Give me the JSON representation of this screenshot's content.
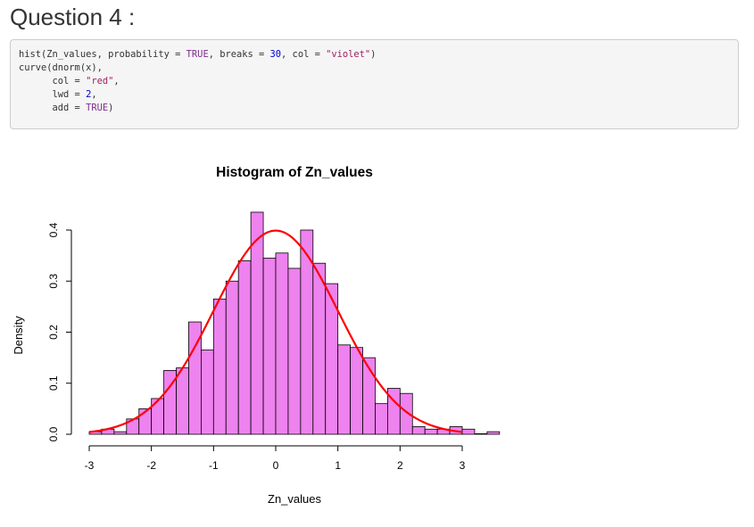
{
  "section_heading": "Question 4 :",
  "code": {
    "lines": [
      [
        {
          "t": "hist(Zn_values, probability = ",
          "c": "fun"
        },
        {
          "t": "TRUE",
          "c": "kw"
        },
        {
          "t": ", breaks = ",
          "c": "fun"
        },
        {
          "t": "30",
          "c": "num"
        },
        {
          "t": ", col = ",
          "c": "fun"
        },
        {
          "t": "\"violet\"",
          "c": "str"
        },
        {
          "t": ")",
          "c": "fun"
        }
      ],
      [
        {
          "t": "curve(dnorm(x),",
          "c": "fun"
        }
      ],
      [
        {
          "t": "      col = ",
          "c": "fun"
        },
        {
          "t": "\"red\"",
          "c": "str"
        },
        {
          "t": ",",
          "c": "fun"
        }
      ],
      [
        {
          "t": "      lwd = ",
          "c": "fun"
        },
        {
          "t": "2",
          "c": "num"
        },
        {
          "t": ",",
          "c": "fun"
        }
      ],
      [
        {
          "t": "      add = ",
          "c": "fun"
        },
        {
          "t": "TRUE",
          "c": "kw"
        },
        {
          "t": ")",
          "c": "fun"
        }
      ]
    ]
  },
  "chart_data": {
    "type": "bar",
    "title": "Histogram of Zn_values",
    "xlabel": "Zn_values",
    "ylabel": "Density",
    "xlim": [
      -3.2,
      3.7
    ],
    "ylim": [
      0,
      0.44
    ],
    "x_ticks": [
      "-3",
      "-2",
      "-1",
      "0",
      "1",
      "2",
      "3"
    ],
    "y_ticks": [
      "0.0",
      "0.1",
      "0.2",
      "0.3",
      "0.4"
    ],
    "grid": false,
    "bar_fill": "#ee82ee",
    "bar_stroke": "#000000",
    "bins": [
      {
        "x0": -3.0,
        "x1": -2.8,
        "density": 0.005
      },
      {
        "x0": -2.8,
        "x1": -2.6,
        "density": 0.01
      },
      {
        "x0": -2.6,
        "x1": -2.4,
        "density": 0.005
      },
      {
        "x0": -2.4,
        "x1": -2.2,
        "density": 0.03
      },
      {
        "x0": -2.2,
        "x1": -2.0,
        "density": 0.05
      },
      {
        "x0": -2.0,
        "x1": -1.8,
        "density": 0.07
      },
      {
        "x0": -1.8,
        "x1": -1.6,
        "density": 0.125
      },
      {
        "x0": -1.6,
        "x1": -1.4,
        "density": 0.13
      },
      {
        "x0": -1.4,
        "x1": -1.2,
        "density": 0.22
      },
      {
        "x0": -1.2,
        "x1": -1.0,
        "density": 0.165
      },
      {
        "x0": -1.0,
        "x1": -0.8,
        "density": 0.265
      },
      {
        "x0": -0.8,
        "x1": -0.6,
        "density": 0.3
      },
      {
        "x0": -0.6,
        "x1": -0.4,
        "density": 0.34
      },
      {
        "x0": -0.4,
        "x1": -0.2,
        "density": 0.435
      },
      {
        "x0": -0.2,
        "x1": 0.0,
        "density": 0.345
      },
      {
        "x0": 0.0,
        "x1": 0.2,
        "density": 0.355
      },
      {
        "x0": 0.2,
        "x1": 0.4,
        "density": 0.325
      },
      {
        "x0": 0.4,
        "x1": 0.6,
        "density": 0.4
      },
      {
        "x0": 0.6,
        "x1": 0.8,
        "density": 0.335
      },
      {
        "x0": 0.8,
        "x1": 1.0,
        "density": 0.295
      },
      {
        "x0": 1.0,
        "x1": 1.2,
        "density": 0.175
      },
      {
        "x0": 1.2,
        "x1": 1.4,
        "density": 0.17
      },
      {
        "x0": 1.4,
        "x1": 1.6,
        "density": 0.15
      },
      {
        "x0": 1.6,
        "x1": 1.8,
        "density": 0.06
      },
      {
        "x0": 1.8,
        "x1": 2.0,
        "density": 0.09
      },
      {
        "x0": 2.0,
        "x1": 2.2,
        "density": 0.08
      },
      {
        "x0": 2.2,
        "x1": 2.4,
        "density": 0.015
      },
      {
        "x0": 2.4,
        "x1": 2.6,
        "density": 0.01
      },
      {
        "x0": 2.6,
        "x1": 2.8,
        "density": 0.01
      },
      {
        "x0": 2.8,
        "x1": 3.0,
        "density": 0.015
      },
      {
        "x0": 3.0,
        "x1": 3.2,
        "density": 0.01
      },
      {
        "x0": 3.2,
        "x1": 3.4,
        "density": 0.0
      },
      {
        "x0": 3.4,
        "x1": 3.6,
        "density": 0.005
      }
    ],
    "curve": {
      "function": "dnorm(x)",
      "color": "#ff0000",
      "x_range": [
        -3.0,
        3.0
      ]
    }
  }
}
